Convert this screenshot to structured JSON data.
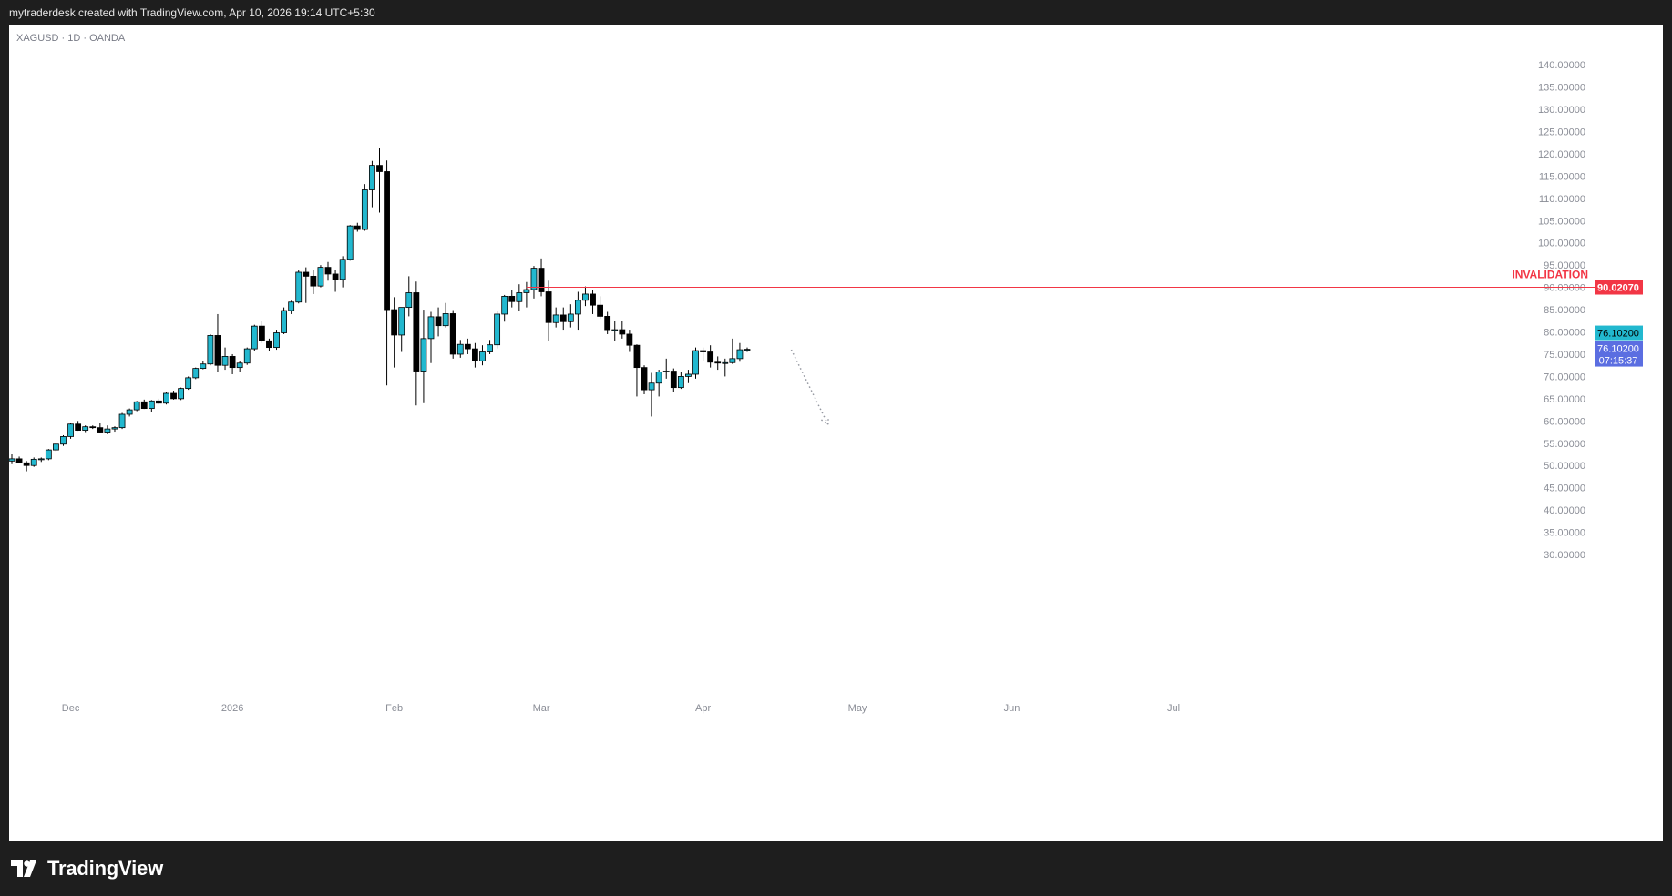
{
  "header": {
    "text": "mytraderdesk created with TradingView.com, Apr 10, 2026 19:14 UTC+5:30"
  },
  "symbol_line": "XAGUSD · 1D · OANDA",
  "brand": {
    "name": "TradingView",
    "icon": "tradingview-logo-icon"
  },
  "colors": {
    "up": "#22b8cf",
    "down": "#000000",
    "invalidation": "#f23645",
    "last_price": "#22b8cf",
    "countdown": "#5b6ee1",
    "axis_text": "#8a8d96"
  },
  "chart_data": {
    "type": "candlestick",
    "symbol": "XAGUSD",
    "interval": "1D",
    "source": "OANDA",
    "y_range": [
      27.5,
      143.5
    ],
    "y_ticks": [
      "140.00000",
      "135.00000",
      "130.00000",
      "125.00000",
      "120.00000",
      "115.00000",
      "110.00000",
      "105.00000",
      "100.00000",
      "95.00000",
      "90.00000",
      "85.00000",
      "80.00000",
      "75.00000",
      "70.00000",
      "65.00000",
      "60.00000",
      "55.00000",
      "50.00000",
      "45.00000",
      "40.00000",
      "35.00000",
      "30.00000"
    ],
    "x_ticks": [
      {
        "label": "Dec",
        "bar": 8
      },
      {
        "label": "2026",
        "bar": 30
      },
      {
        "label": "Feb",
        "bar": 52
      },
      {
        "label": "Mar",
        "bar": 72
      },
      {
        "label": "Apr",
        "bar": 94
      },
      {
        "label": "May",
        "bar": 115
      },
      {
        "label": "Jun",
        "bar": 136
      },
      {
        "label": "Jul",
        "bar": 158
      }
    ],
    "candles": [
      [
        51.0,
        52.5,
        50.3,
        51.5
      ],
      [
        51.5,
        52.0,
        50.5,
        50.6
      ],
      [
        50.6,
        51.0,
        48.7,
        50.0
      ],
      [
        50.0,
        51.8,
        49.7,
        51.4
      ],
      [
        51.4,
        51.8,
        50.8,
        51.5
      ],
      [
        51.5,
        53.7,
        51.2,
        53.5
      ],
      [
        53.5,
        55.0,
        53.2,
        54.8
      ],
      [
        54.8,
        56.8,
        54.4,
        56.5
      ],
      [
        56.5,
        59.5,
        56.0,
        59.3
      ],
      [
        59.3,
        60.0,
        57.8,
        57.9
      ],
      [
        57.9,
        59.0,
        57.5,
        58.7
      ],
      [
        58.7,
        59.0,
        58.2,
        58.5
      ],
      [
        58.5,
        59.5,
        57.2,
        57.5
      ],
      [
        57.5,
        59.0,
        57.0,
        58.2
      ],
      [
        58.2,
        58.8,
        57.6,
        58.5
      ],
      [
        58.5,
        61.8,
        58.2,
        61.5
      ],
      [
        61.5,
        62.8,
        61.0,
        62.5
      ],
      [
        62.5,
        64.5,
        62.2,
        64.3
      ],
      [
        64.3,
        64.8,
        62.7,
        62.8
      ],
      [
        62.8,
        64.7,
        62.0,
        64.5
      ],
      [
        64.5,
        65.0,
        63.7,
        64.0
      ],
      [
        64.0,
        66.5,
        63.7,
        66.2
      ],
      [
        66.2,
        66.8,
        64.8,
        65.0
      ],
      [
        65.0,
        67.5,
        64.7,
        67.3
      ],
      [
        67.3,
        70.0,
        67.0,
        69.7
      ],
      [
        69.7,
        72.0,
        69.4,
        71.8
      ],
      [
        71.8,
        73.5,
        71.6,
        72.8
      ],
      [
        72.8,
        79.5,
        72.5,
        79.2
      ],
      [
        79.2,
        84.0,
        71.0,
        72.5
      ],
      [
        72.5,
        76.5,
        71.5,
        74.5
      ],
      [
        74.5,
        75.0,
        70.5,
        72.0
      ],
      [
        72.0,
        73.5,
        71.0,
        73.0
      ],
      [
        73.0,
        76.5,
        72.6,
        76.2
      ],
      [
        76.2,
        81.6,
        75.8,
        81.3
      ],
      [
        81.3,
        82.5,
        77.5,
        78.0
      ],
      [
        78.0,
        78.5,
        75.8,
        76.5
      ],
      [
        76.5,
        80.5,
        76.0,
        79.8
      ],
      [
        79.8,
        85.5,
        79.5,
        84.8
      ],
      [
        84.8,
        87.0,
        84.0,
        86.7
      ],
      [
        86.7,
        93.8,
        86.4,
        93.4
      ],
      [
        93.4,
        94.5,
        86.5,
        92.5
      ],
      [
        92.5,
        94.0,
        88.5,
        90.3
      ],
      [
        90.3,
        95.0,
        90.0,
        94.5
      ],
      [
        94.5,
        95.7,
        91.5,
        93.0
      ],
      [
        93.0,
        94.0,
        89.0,
        91.8
      ],
      [
        91.8,
        97.0,
        90.0,
        96.3
      ],
      [
        96.3,
        104.0,
        96.0,
        103.8
      ],
      [
        103.8,
        104.5,
        102.5,
        103.0
      ],
      [
        103.0,
        113.2,
        102.7,
        111.9
      ],
      [
        111.9,
        118.4,
        108.0,
        117.4
      ],
      [
        117.4,
        121.4,
        106.8,
        116.0
      ],
      [
        116.0,
        118.5,
        68.0,
        85.0
      ],
      [
        85.0,
        87.8,
        72.0,
        79.3
      ],
      [
        79.3,
        85.5,
        75.5,
        85.5
      ],
      [
        85.5,
        92.5,
        83.5,
        88.8
      ],
      [
        88.8,
        91.3,
        63.5,
        71.2
      ],
      [
        71.2,
        85.0,
        64.0,
        78.5
      ],
      [
        78.5,
        84.5,
        73.0,
        83.4
      ],
      [
        83.4,
        85.5,
        79.0,
        81.4
      ],
      [
        81.4,
        86.5,
        81.0,
        84.1
      ],
      [
        84.1,
        84.9,
        74.0,
        75.0
      ],
      [
        75.0,
        78.2,
        74.2,
        77.2
      ],
      [
        77.2,
        78.5,
        75.0,
        76.2
      ],
      [
        76.2,
        77.5,
        72.0,
        73.5
      ],
      [
        73.5,
        77.0,
        72.5,
        75.5
      ],
      [
        75.5,
        78.2,
        75.0,
        77.1
      ],
      [
        77.1,
        84.7,
        76.3,
        84.0
      ],
      [
        84.0,
        88.3,
        82.3,
        88.0
      ],
      [
        88.0,
        89.5,
        85.5,
        86.8
      ],
      [
        86.8,
        90.7,
        84.7,
        88.8
      ],
      [
        88.8,
        91.2,
        85.5,
        89.5
      ],
      [
        89.5,
        94.8,
        87.5,
        94.3
      ],
      [
        94.3,
        96.5,
        88.0,
        89.0
      ],
      [
        89.0,
        91.5,
        78.0,
        82.1
      ],
      [
        82.1,
        85.5,
        81.0,
        83.8
      ],
      [
        83.8,
        85.5,
        80.5,
        82.3
      ],
      [
        82.3,
        86.2,
        81.0,
        84.0
      ],
      [
        84.0,
        89.0,
        80.5,
        87.1
      ],
      [
        87.1,
        90.2,
        85.8,
        88.5
      ],
      [
        88.5,
        89.4,
        84.0,
        86.0
      ],
      [
        86.0,
        88.0,
        83.0,
        83.5
      ],
      [
        83.5,
        84.5,
        79.5,
        80.5
      ],
      [
        80.5,
        82.5,
        78.0,
        80.5
      ],
      [
        80.5,
        82.5,
        78.5,
        79.5
      ],
      [
        79.5,
        80.5,
        75.5,
        77.0
      ],
      [
        77.0,
        77.2,
        65.5,
        72.0
      ],
      [
        72.0,
        72.5,
        66.0,
        67.0
      ],
      [
        67.0,
        70.8,
        61.0,
        68.5
      ],
      [
        68.5,
        71.5,
        65.5,
        71.0
      ],
      [
        71.0,
        74.0,
        69.5,
        71.2
      ],
      [
        71.2,
        71.8,
        66.5,
        67.5
      ],
      [
        67.5,
        71.0,
        67.2,
        70.0
      ],
      [
        70.0,
        71.5,
        68.5,
        70.5
      ],
      [
        70.5,
        76.5,
        69.5,
        75.8
      ],
      [
        75.8,
        76.5,
        73.5,
        75.5
      ],
      [
        75.5,
        77.0,
        72.0,
        73.2
      ],
      [
        73.2,
        74.5,
        71.5,
        73.1
      ],
      [
        73.1,
        74.0,
        70.0,
        73.1
      ],
      [
        73.1,
        78.5,
        72.8,
        74.0
      ],
      [
        74.0,
        77.5,
        73.3,
        76.0
      ],
      [
        76.0,
        76.5,
        75.5,
        76.1
      ]
    ],
    "invalidation": {
      "label": "INVALIDATION",
      "value": "90.02070",
      "price": 90.0207,
      "from_bar": 70
    },
    "last_price": {
      "value": "76.10200",
      "price": 76.102
    },
    "countdown": {
      "value": "76.10200",
      "time": "07:15:37"
    },
    "projection": {
      "from": [
        106,
        76.0
      ],
      "to": [
        111,
        59.2
      ],
      "style": "dotted-arrow"
    }
  }
}
